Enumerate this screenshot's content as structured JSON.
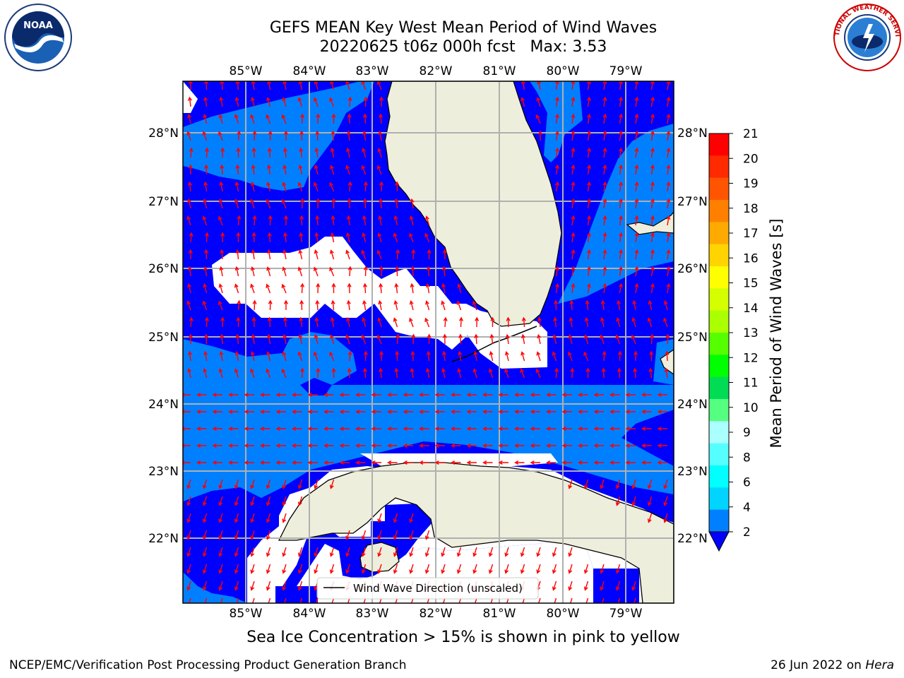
{
  "header": {
    "title_line1": "GEFS MEAN Key West Mean Period of Wind Waves",
    "title_line2": "20220625 t06z 000h fcst   Max: 3.53"
  },
  "logos": {
    "left": "noaa-logo",
    "left_text": "NOAA",
    "right": "nws-logo",
    "right_text": "NATIONAL WEATHER SERVICE"
  },
  "map": {
    "lon_labels": [
      "85°W",
      "84°W",
      "83°W",
      "82°W",
      "81°W",
      "80°W",
      "79°W"
    ],
    "lat_labels": [
      "28°N",
      "27°N",
      "26°N",
      "25°N",
      "24°N",
      "23°N",
      "22°N"
    ],
    "legend_label": "Wind Wave Direction (unscaled)",
    "colors": {
      "deep_blue": "#0000ff",
      "light_blue": "#0080ff",
      "land": "#eeeedc",
      "arrow": "#ff0000",
      "grid": "#b0b0b0"
    }
  },
  "colorbar": {
    "label": "Mean Period of Wind Waves [s]",
    "ticks": [
      "21",
      "20",
      "19",
      "18",
      "17",
      "16",
      "15",
      "14",
      "13",
      "12",
      "11",
      "10",
      "9",
      "8",
      "6",
      "4",
      "2"
    ],
    "colors": [
      "#ff0000",
      "#ff2a00",
      "#ff5500",
      "#ff8000",
      "#ffaa00",
      "#ffd400",
      "#ffff00",
      "#d4ff00",
      "#aaff00",
      "#55ff00",
      "#00ff00",
      "#00dd55",
      "#55ff80",
      "#aaffff",
      "#55ffff",
      "#00ffff",
      "#00d4ff",
      "#0080ff"
    ],
    "extend_color": "#0000ff"
  },
  "footer": {
    "note": "Sea Ice Concentration > 15% is shown in pink to yellow",
    "left": "NCEP/EMC/Verification Post Processing Product Generation Branch",
    "right_date": "26 Jun 2022 on ",
    "right_host": "Hera"
  }
}
